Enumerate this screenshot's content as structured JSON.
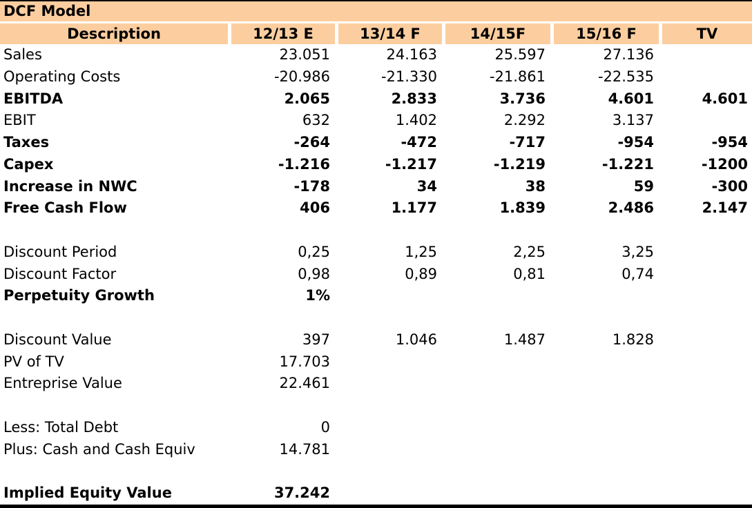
{
  "title": "DCF Model",
  "table": {
    "columns": [
      "Description",
      "12/13 E",
      "13/14 F",
      "14/15F",
      "15/16 F",
      "TV"
    ],
    "rows": [
      {
        "label": "Sales",
        "bold": false,
        "values": [
          "23.051",
          "24.163",
          "25.597",
          "27.136",
          ""
        ]
      },
      {
        "label": "Operating Costs",
        "bold": false,
        "values": [
          "-20.986",
          "-21.330",
          "-21.861",
          "-22.535",
          ""
        ]
      },
      {
        "label": "EBITDA",
        "bold": true,
        "values": [
          "2.065",
          "2.833",
          "3.736",
          "4.601",
          "4.601"
        ]
      },
      {
        "label": "EBIT",
        "bold": false,
        "values": [
          "632",
          "1.402",
          "2.292",
          "3.137",
          ""
        ]
      },
      {
        "label": "Taxes",
        "bold": true,
        "values": [
          "-264",
          "-472",
          "-717",
          "-954",
          "-954"
        ]
      },
      {
        "label": "Capex",
        "bold": true,
        "values": [
          "-1.216",
          "-1.217",
          "-1.219",
          "-1.221",
          "-1200"
        ]
      },
      {
        "label": "Increase in NWC",
        "bold": true,
        "values": [
          "-178",
          "34",
          "38",
          "59",
          "-300"
        ]
      },
      {
        "label": "Free Cash Flow",
        "bold": true,
        "values": [
          "406",
          "1.177",
          "1.839",
          "2.486",
          "2.147"
        ]
      },
      {
        "label": "",
        "bold": false,
        "values": [
          "",
          "",
          "",
          "",
          ""
        ]
      },
      {
        "label": "Discount Period",
        "bold": false,
        "values": [
          "0,25",
          "1,25",
          "2,25",
          "3,25",
          ""
        ]
      },
      {
        "label": "Discount Factor",
        "bold": false,
        "values": [
          "0,98",
          "0,89",
          "0,81",
          "0,74",
          ""
        ]
      },
      {
        "label": "Perpetuity Growth",
        "bold": true,
        "values": [
          "1%",
          "",
          "",
          "",
          ""
        ]
      },
      {
        "label": "",
        "bold": false,
        "values": [
          "",
          "",
          "",
          "",
          ""
        ]
      },
      {
        "label": "Discount Value",
        "bold": false,
        "values": [
          "397",
          "1.046",
          "1.487",
          "1.828",
          ""
        ]
      },
      {
        "label": "PV of TV",
        "bold": false,
        "values": [
          "17.703",
          "",
          "",
          "",
          ""
        ]
      },
      {
        "label": "Entreprise Value",
        "bold": false,
        "values": [
          "22.461",
          "",
          "",
          "",
          ""
        ]
      },
      {
        "label": "",
        "bold": false,
        "values": [
          "",
          "",
          "",
          "",
          ""
        ]
      },
      {
        "label": "Less: Total Debt",
        "bold": false,
        "values": [
          "0",
          "",
          "",
          "",
          ""
        ]
      },
      {
        "label": "Plus: Cash and Cash Equiv",
        "bold": false,
        "values": [
          "14.781",
          "",
          "",
          "",
          ""
        ]
      },
      {
        "label": "",
        "bold": false,
        "values": [
          "",
          "",
          "",
          "",
          ""
        ]
      },
      {
        "label": "Implied Equity Value",
        "bold": true,
        "values": [
          "37.242",
          "",
          "",
          "",
          ""
        ]
      }
    ]
  },
  "colors": {
    "header_bg": "#FCCE9F",
    "border": "#000000",
    "text": "#000000",
    "background": "#FFFFFF"
  }
}
